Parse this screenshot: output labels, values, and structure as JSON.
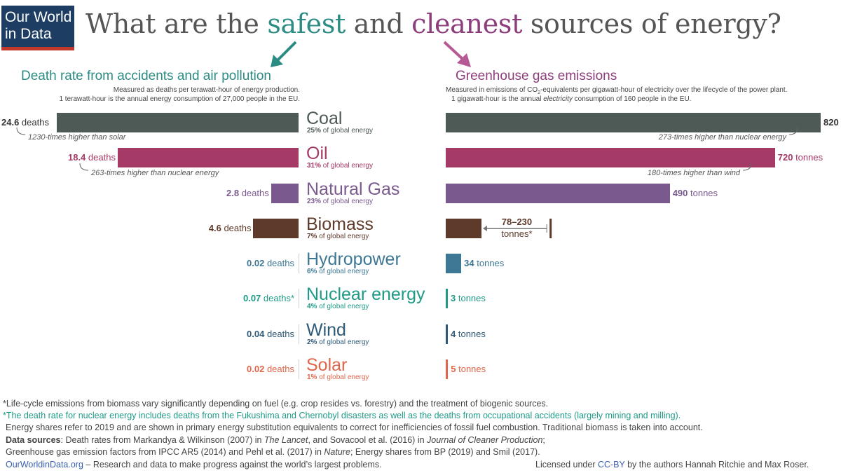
{
  "logo": {
    "line1": "Our World",
    "line2": "in Data"
  },
  "title": {
    "part1": "What are the ",
    "safest": "safest",
    "part2": " and ",
    "cleanest": "cleanest",
    "part3": " sources of energy?"
  },
  "left_panel": {
    "heading": "Death rate from accidents and air pollution",
    "sub1": "Measured as deaths per terawatt-hour of energy production.",
    "sub2": "1 terawatt-hour is the annual energy consumption of 27,000 people in the EU."
  },
  "right_panel": {
    "heading": "Greenhouse gas emissions",
    "sub1a": "Measured in emissions of CO",
    "sub1b": "2",
    "sub1c": "-equivalents per gigawatt-hour of electricity over the lifecycle of the power plant.",
    "sub2a": "1 gigawatt-hour is the annual ",
    "sub2b": "electricity",
    "sub2c": " consumption of 160 people in the EU."
  },
  "sources": [
    {
      "name": "Coal",
      "share": "25%",
      "color": "#4d5a55",
      "death_num": "24.6",
      "death_unit": " deaths",
      "em_num": "820",
      "em_unit": " tonnes"
    },
    {
      "name": "Oil",
      "share": "31%",
      "color": "#a63a66",
      "death_num": "18.4",
      "death_unit": " deaths",
      "em_num": "720",
      "em_unit": " tonnes"
    },
    {
      "name": "Natural Gas",
      "share": "23%",
      "color": "#7a5a8e",
      "death_num": "2.8",
      "death_unit": " deaths",
      "em_num": "490",
      "em_unit": " tonnes"
    },
    {
      "name": "Biomass",
      "share": "7%",
      "color": "#5e3a2a",
      "death_num": "4.6",
      "death_unit": " deaths",
      "em_num": "78–230",
      "em_unit": "tonnes*"
    },
    {
      "name": "Hydropower",
      "share": "6%",
      "color": "#3f7894",
      "death_num": "0.02",
      "death_unit": " deaths",
      "em_num": "34",
      "em_unit": " tonnes"
    },
    {
      "name": "Nuclear energy",
      "share": "4%",
      "color": "#1f9a87",
      "death_num": "0.07",
      "death_unit": " deaths*",
      "em_num": "3",
      "em_unit": " tonnes"
    },
    {
      "name": "Wind",
      "share": "2%",
      "color": "#2f5a77",
      "death_num": "0.04",
      "death_unit": " deaths",
      "em_num": "4",
      "em_unit": " tonnes"
    },
    {
      "name": "Solar",
      "share": "1%",
      "color": "#e0664a",
      "death_num": "0.02",
      "death_unit": " deaths",
      "em_num": "5",
      "em_unit": " tonnes"
    }
  ],
  "share_suffix": " of global energy",
  "notes": {
    "coal_left": "1230-times higher than solar",
    "oil_left": "263-times higher than nuclear energy",
    "coal_right": "273-times higher than nuclear energy",
    "oil_right": "180-times higher than wind"
  },
  "footnotes": {
    "f1": "*Life-cycle emissions from biomass vary significantly depending on fuel (e.g. crop resides vs. forestry) and the treatment of biogenic sources.",
    "f2": "*The death rate for nuclear energy includes deaths from the Fukushima and Chernobyl disasters as well as the deaths from occupational accidents (largely mining and milling).",
    "f3": "Energy shares refer to 2019 and are shown in primary energy substitution equivalents to correct for inefficiencies of fossil fuel combustion. Traditional biomass is taken into account.",
    "ds_label": "Data sources",
    "ds1a": ": Death rates from Markandya & Wilkinson (2007) in ",
    "ds1b": "The Lancet",
    "ds1c": ", and Sovacool et al. (2016) in ",
    "ds1d": "Journal of Cleaner Production",
    "ds1e": ";",
    "ds2a": "Greenhouse gas emission factors from IPCC AR5 (2014) and Pehl et al. (2017) in ",
    "ds2b": "Nature",
    "ds2c": "; Energy shares from BP (2019) and Smil (2017).",
    "site": "OurWorldinData.org",
    "site_rest": " – Research and data to make progress against the world’s largest problems.",
    "lic1": "Licensed under ",
    "lic2": "CC-BY",
    "lic3": " by the authors Hannah Ritchie and Max Roser."
  },
  "chart_data": [
    {
      "type": "bar",
      "title": "Death rate from accidents and air pollution",
      "ylabel": "deaths per terawatt-hour",
      "categories": [
        "Coal",
        "Oil",
        "Natural Gas",
        "Biomass",
        "Hydropower",
        "Nuclear energy",
        "Wind",
        "Solar"
      ],
      "values": [
        24.6,
        18.4,
        2.8,
        4.6,
        0.02,
        0.07,
        0.04,
        0.02
      ],
      "orientation": "horizontal-leftward"
    },
    {
      "type": "bar",
      "title": "Greenhouse gas emissions",
      "ylabel": "tonnes CO2-eq per gigawatt-hour",
      "categories": [
        "Coal",
        "Oil",
        "Natural Gas",
        "Biomass",
        "Hydropower",
        "Nuclear energy",
        "Wind",
        "Solar"
      ],
      "values": [
        820,
        720,
        490,
        78,
        34,
        3,
        4,
        5
      ],
      "biomass_range": [
        78,
        230
      ],
      "orientation": "horizontal"
    }
  ]
}
